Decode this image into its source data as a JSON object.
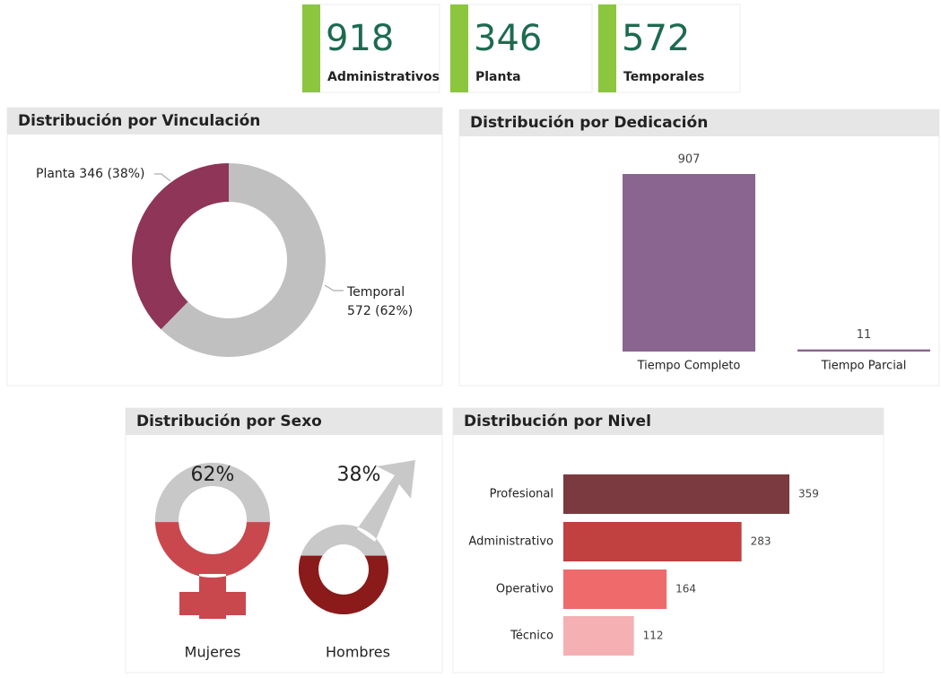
{
  "kpis": [
    {
      "value": 918,
      "label": "Administrativos"
    },
    {
      "value": 346,
      "label": "Planta"
    },
    {
      "value": 572,
      "label": "Temporales"
    }
  ],
  "chart_data": [
    {
      "type": "donut",
      "title": "Distribución por Vinculación",
      "categories": [
        "Planta",
        "Temporal"
      ],
      "values": [
        346,
        572
      ],
      "value_labels": [
        "Planta 346 (38%)",
        "Temporal 572 (62%)"
      ],
      "colors": [
        "#8e3558",
        "#c0c0c0"
      ]
    },
    {
      "type": "bar",
      "title": "Distribución por Dedicación",
      "categories": [
        "Tiempo Completo",
        "Tiempo Parcial"
      ],
      "values": [
        907,
        11
      ],
      "color": "#8a6590"
    },
    {
      "type": "pictogram",
      "title": "Distribución por Sexo",
      "categories": [
        "Mujeres",
        "Hombres"
      ],
      "values": [
        62,
        38
      ],
      "value_labels": [
        "62%",
        "38%"
      ],
      "colors": [
        "#c9484e",
        "#8b1a1a"
      ],
      "base_color": "#c8c8c8"
    },
    {
      "type": "hbar",
      "title": "Distribución por Nivel",
      "categories": [
        "Profesional",
        "Administrativo",
        "Operativo",
        "Técnico"
      ],
      "values": [
        359,
        283,
        164,
        112
      ],
      "colors": [
        "#7b3a3f",
        "#c0413f",
        "#ef6b6b",
        "#f4b0b3"
      ]
    }
  ]
}
